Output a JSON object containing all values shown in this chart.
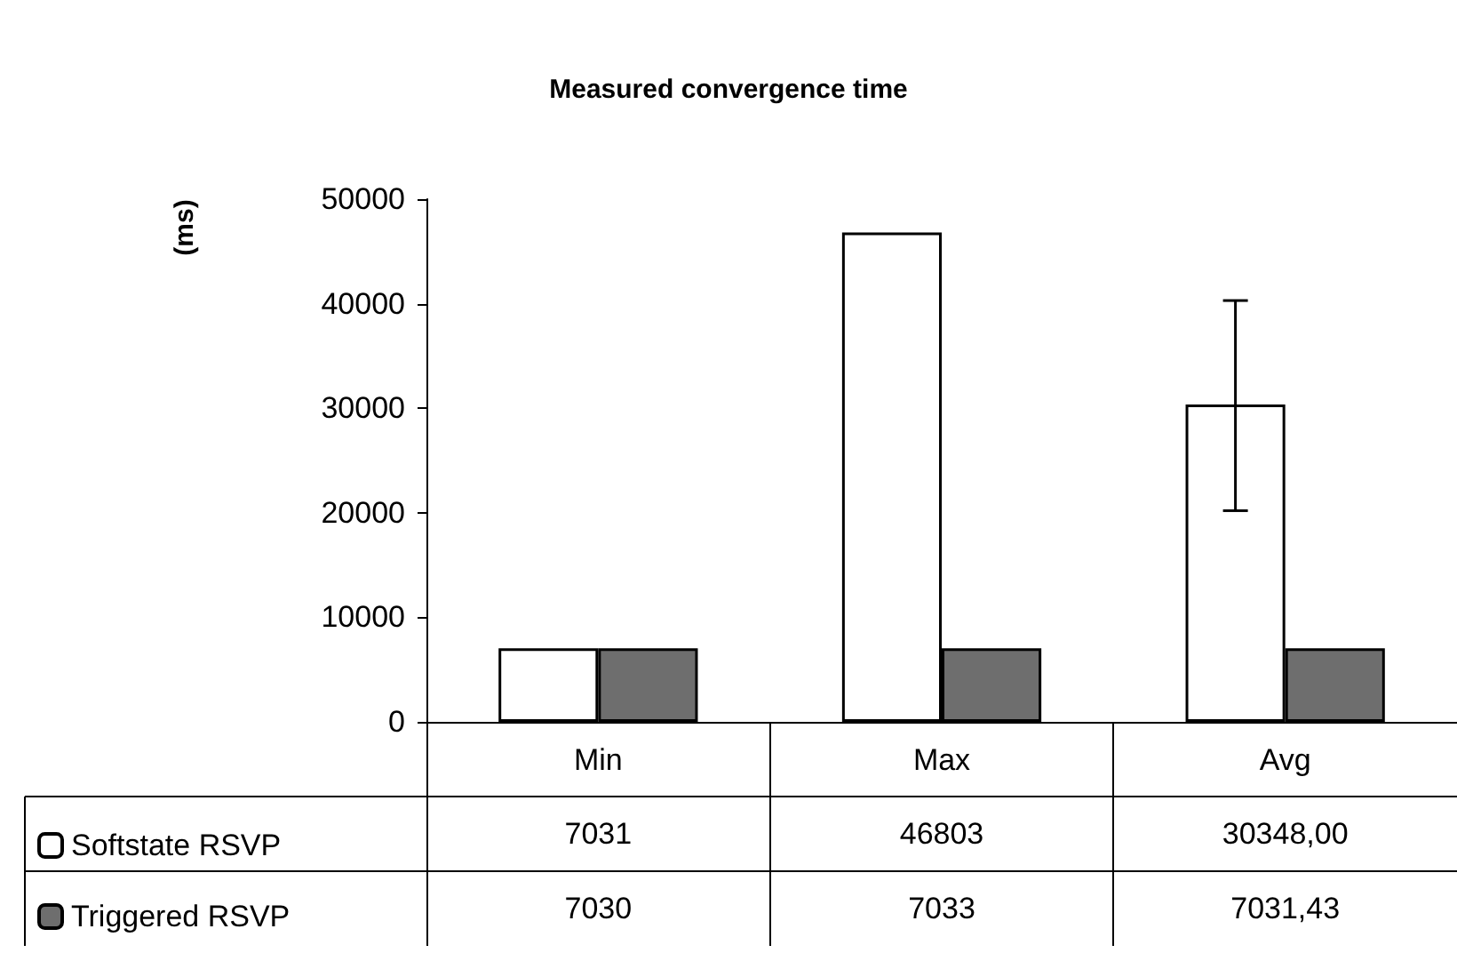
{
  "chart_data": {
    "type": "bar",
    "title": "Measured convergence time",
    "ylabel": "(ms)",
    "categories": [
      "Min",
      "Max",
      "Avg"
    ],
    "series": [
      {
        "name": "Softstate RSVP",
        "color": "#ffffff",
        "values": [
          7031,
          46803,
          30348
        ],
        "value_labels": [
          "7031",
          "46803",
          "30348,00"
        ],
        "errors": [
          null,
          null,
          [
            20200,
            40300
          ]
        ]
      },
      {
        "name": "Triggered RSVP",
        "color": "#6e6e6e",
        "values": [
          7030,
          7033,
          7031.43
        ],
        "value_labels": [
          "7030",
          "7033",
          "7031,43"
        ]
      }
    ],
    "ylim": [
      0,
      50000
    ],
    "yticks": [
      0,
      10000,
      20000,
      30000,
      40000,
      50000
    ],
    "grid": false,
    "legend": "bottom left"
  }
}
